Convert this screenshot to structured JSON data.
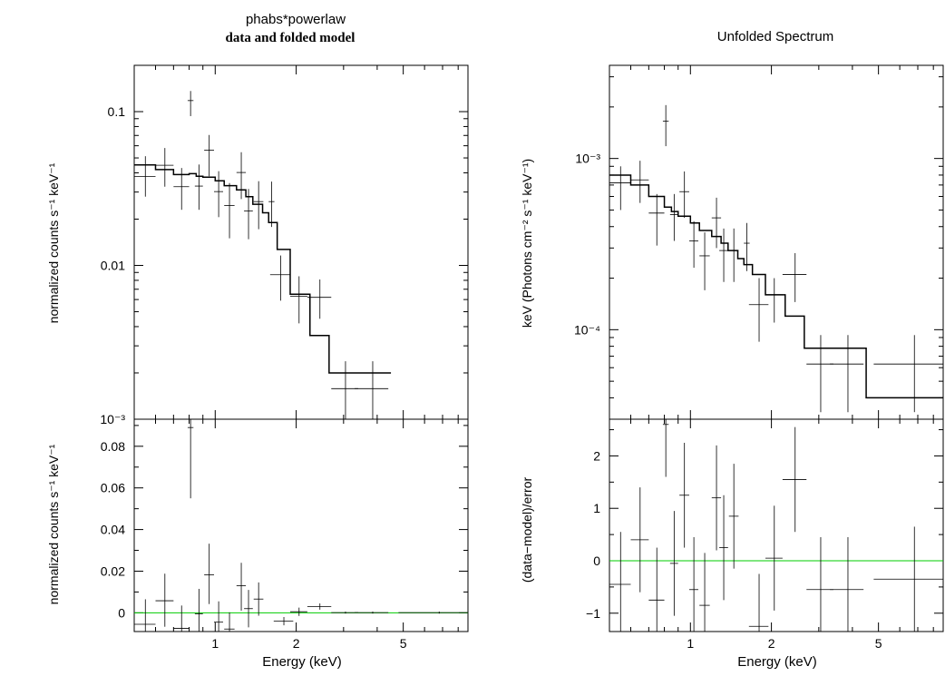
{
  "colors": {
    "axis": "#000000",
    "data": "#000000",
    "model": "#000000",
    "reference": "#00cc00"
  },
  "chart_data": [
    {
      "type": "scatter",
      "panel": "data-folded-model",
      "title": "phabs*powerlaw",
      "subtitle": "data and folded model",
      "xlabel": "",
      "ylabel": "normalized counts s⁻¹ keV⁻¹",
      "xscale": "log",
      "yscale": "log",
      "xlim": [
        0.5,
        8.7
      ],
      "ylim": [
        0.001,
        0.2
      ],
      "yticks": [
        0.1,
        0.01,
        0.001
      ],
      "ytick_labels": [
        "0.1",
        "0.01",
        "10⁻³"
      ],
      "series": [
        {
          "x": [
            0.55,
            0.65,
            0.75,
            0.81,
            0.87,
            0.95,
            1.03,
            1.13,
            1.25,
            1.33,
            1.45,
            1.62,
            1.75,
            2.05,
            2.45,
            3.05,
            3.85
          ],
          "y": [
            0.0378,
            0.0448,
            0.0325,
            0.118,
            0.0328,
            0.0562,
            0.0302,
            0.0245,
            0.0402,
            0.0226,
            0.026,
            0.026,
            0.0087,
            0.0063,
            0.0062,
            0.00158,
            0.00158
          ],
          "xerr_low": [
            0.05,
            0.05,
            0.05,
            0.02,
            0.03,
            0.04,
            0.04,
            0.05,
            0.05,
            0.05,
            0.06,
            0.04,
            0.15,
            0.15,
            0.25,
            0.35,
            0.55
          ],
          "xerr_high": [
            0.05,
            0.05,
            0.05,
            0.02,
            0.03,
            0.04,
            0.04,
            0.05,
            0.05,
            0.05,
            0.06,
            0.04,
            0.15,
            0.15,
            0.25,
            0.35,
            0.55
          ],
          "yerr_low": [
            0.0098,
            0.0123,
            0.0095,
            0.0245,
            0.0098,
            0.0182,
            0.0096,
            0.0095,
            0.0132,
            0.0078,
            0.0088,
            0.0082,
            0.0028,
            0.0021,
            0.0017,
            0.0006,
            0.0006
          ],
          "yerr_high": [
            0.0135,
            0.0132,
            0.0105,
            0.0182,
            0.0125,
            0.0143,
            0.0108,
            0.0098,
            0.0143,
            0.0088,
            0.0093,
            0.0091,
            0.0029,
            0.0022,
            0.0019,
            0.0008,
            0.0008
          ]
        }
      ],
      "model_steps": {
        "edges": [
          0.5,
          0.6,
          0.7,
          0.8,
          0.85,
          0.9,
          1.0,
          1.08,
          1.2,
          1.3,
          1.38,
          1.5,
          1.58,
          1.7,
          1.9,
          2.25,
          2.65,
          3.25,
          4.5
        ],
        "values": [
          0.045,
          0.042,
          0.039,
          0.0395,
          0.038,
          0.0375,
          0.0355,
          0.033,
          0.031,
          0.028,
          0.025,
          0.022,
          0.019,
          0.0127,
          0.0065,
          0.0035,
          0.002,
          0.002
        ]
      }
    },
    {
      "type": "scatter",
      "panel": "data-folded-residuals",
      "title": "",
      "xlabel": "Energy (keV)",
      "ylabel": "normalized counts s⁻¹ keV⁻¹",
      "xscale": "log",
      "xlim": [
        0.5,
        8.7
      ],
      "ylim": [
        -0.009,
        0.093
      ],
      "yticks": [
        0,
        0.02,
        0.04,
        0.06,
        0.08
      ],
      "ytick_labels": [
        "0",
        "0.02",
        "0.04",
        "0.06",
        "0.08"
      ],
      "xticks": [
        1,
        2,
        5
      ],
      "xtick_labels": [
        "1",
        "2",
        "5"
      ],
      "reference_line": 0,
      "series": [
        {
          "x": [
            0.55,
            0.65,
            0.75,
            0.81,
            0.87,
            0.95,
            1.03,
            1.13,
            1.25,
            1.33,
            1.45,
            1.8,
            2.05,
            2.45,
            3.05,
            3.85,
            6.8
          ],
          "y": [
            -0.0055,
            0.0058,
            -0.0075,
            0.089,
            -0.0005,
            0.0182,
            -0.0045,
            -0.0078,
            0.013,
            0.002,
            0.0066,
            -0.004,
            0.0005,
            0.003,
            0.0001,
            0.0001,
            0.0001
          ],
          "xerr_low": [
            0.05,
            0.05,
            0.05,
            0.02,
            0.03,
            0.04,
            0.04,
            0.05,
            0.05,
            0.05,
            0.06,
            0.15,
            0.15,
            0.25,
            0.35,
            0.55,
            2.0
          ],
          "xerr_high": [
            0.05,
            0.05,
            0.05,
            0.02,
            0.03,
            0.04,
            0.04,
            0.05,
            0.05,
            0.05,
            0.06,
            0.15,
            0.15,
            0.25,
            0.35,
            0.55,
            1.9
          ],
          "yerr_low": [
            0.011,
            0.0125,
            0.01,
            0.034,
            0.01,
            0.014,
            0.01,
            0.008,
            0.012,
            0.009,
            0.008,
            0.002,
            0.002,
            0.0015,
            0.0005,
            0.0005,
            0.0005
          ],
          "yerr_high": [
            0.012,
            0.013,
            0.011,
            0.008,
            0.012,
            0.015,
            0.01,
            0.008,
            0.011,
            0.009,
            0.008,
            0.002,
            0.002,
            0.0015,
            0.0005,
            0.0005,
            0.0005
          ]
        }
      ]
    },
    {
      "type": "scatter",
      "panel": "unfolded-spectrum",
      "title": "Unfolded Spectrum",
      "xlabel": "",
      "ylabel": "keV (Photons cm⁻² s⁻¹ keV⁻¹)",
      "xscale": "log",
      "yscale": "log",
      "xlim": [
        0.5,
        8.7
      ],
      "ylim": [
        3e-05,
        0.0035
      ],
      "yticks": [
        0.001,
        0.0001
      ],
      "ytick_labels": [
        "10⁻³",
        "10⁻⁴"
      ],
      "series": [
        {
          "x": [
            0.55,
            0.65,
            0.75,
            0.81,
            0.87,
            0.95,
            1.03,
            1.13,
            1.25,
            1.33,
            1.45,
            1.62,
            1.8,
            2.05,
            2.45,
            3.05,
            3.85,
            6.8
          ],
          "y": [
            0.00072,
            0.00075,
            0.00048,
            0.00165,
            0.00047,
            0.00064,
            0.00033,
            0.00027,
            0.00045,
            0.00029,
            0.00029,
            0.00032,
            0.00014,
            0.00016,
            0.00021,
            6.3e-05,
            6.3e-05,
            6.3e-05
          ],
          "xerr_low": [
            0.05,
            0.05,
            0.05,
            0.02,
            0.03,
            0.04,
            0.04,
            0.05,
            0.05,
            0.05,
            0.06,
            0.04,
            0.15,
            0.15,
            0.25,
            0.35,
            0.55,
            2.0
          ],
          "xerr_high": [
            0.05,
            0.05,
            0.05,
            0.02,
            0.03,
            0.04,
            0.04,
            0.05,
            0.05,
            0.05,
            0.06,
            0.04,
            0.15,
            0.15,
            0.25,
            0.35,
            0.55,
            1.9
          ],
          "yerr_low": [
            0.00022,
            0.0002,
            0.00017,
            0.00047,
            0.00014,
            0.00019,
            0.0001,
            0.0001,
            0.00015,
            0.0001,
            0.0001,
            0.0001,
            5.5e-05,
            5e-05,
            6.5e-05,
            3e-05,
            3e-05,
            3e-05
          ],
          "yerr_high": [
            0.00018,
            0.00022,
            0.00014,
            0.0004,
            0.00015,
            0.0002,
            0.0001,
            0.0001,
            0.00014,
            0.0001,
            0.0001,
            0.0001,
            6e-05,
            4e-05,
            7e-05,
            3e-05,
            3e-05,
            3e-05
          ]
        }
      ],
      "model_steps": {
        "edges": [
          0.5,
          0.6,
          0.7,
          0.8,
          0.85,
          0.9,
          1.0,
          1.08,
          1.2,
          1.3,
          1.38,
          1.5,
          1.58,
          1.7,
          1.9,
          2.25,
          2.65,
          3.25,
          4.5,
          8.7
        ],
        "values": [
          0.0008,
          0.0007,
          0.0006,
          0.00052,
          0.00049,
          0.00046,
          0.00042,
          0.00038,
          0.00035,
          0.00032,
          0.00029,
          0.00026,
          0.00024,
          0.00021,
          0.00016,
          0.00012,
          7.8e-05,
          7.8e-05,
          4e-05
        ]
      }
    },
    {
      "type": "scatter",
      "panel": "unfolded-residuals",
      "title": "",
      "xlabel": "Energy (keV)",
      "ylabel": "(data−model)/error",
      "xscale": "log",
      "xlim": [
        0.5,
        8.7
      ],
      "ylim": [
        -1.35,
        2.7
      ],
      "yticks": [
        -1,
        0,
        1,
        2
      ],
      "ytick_labels": [
        "−1",
        "0",
        "1",
        "2"
      ],
      "xticks": [
        1,
        2,
        5
      ],
      "xtick_labels": [
        "1",
        "2",
        "5"
      ],
      "reference_line": 0,
      "series": [
        {
          "x": [
            0.55,
            0.65,
            0.75,
            0.81,
            0.87,
            0.95,
            1.03,
            1.13,
            1.25,
            1.33,
            1.45,
            1.8,
            2.05,
            2.45,
            3.05,
            3.85,
            6.8
          ],
          "y": [
            -0.45,
            0.4,
            -0.75,
            2.6,
            -0.05,
            1.25,
            -0.55,
            -0.85,
            1.2,
            0.25,
            0.85,
            -1.25,
            0.05,
            1.55,
            -0.55,
            -0.55,
            -0.35
          ],
          "xerr_low": [
            0.05,
            0.05,
            0.05,
            0.02,
            0.03,
            0.04,
            0.04,
            0.05,
            0.05,
            0.05,
            0.06,
            0.15,
            0.15,
            0.25,
            0.35,
            0.55,
            2.0
          ],
          "xerr_high": [
            0.05,
            0.05,
            0.05,
            0.02,
            0.03,
            0.04,
            0.04,
            0.05,
            0.05,
            0.05,
            0.06,
            0.15,
            0.15,
            0.25,
            0.35,
            0.55,
            1.9
          ],
          "yerr_low": [
            1.0,
            1.0,
            1.0,
            1.0,
            1.0,
            1.0,
            1.0,
            1.0,
            1.0,
            1.0,
            1.0,
            1.0,
            1.0,
            1.0,
            1.0,
            1.0,
            1.0
          ],
          "yerr_high": [
            1.0,
            1.0,
            1.0,
            1.0,
            1.0,
            1.0,
            1.0,
            1.0,
            1.0,
            1.0,
            1.0,
            1.0,
            1.0,
            1.0,
            1.0,
            1.0,
            1.0
          ]
        }
      ]
    }
  ]
}
